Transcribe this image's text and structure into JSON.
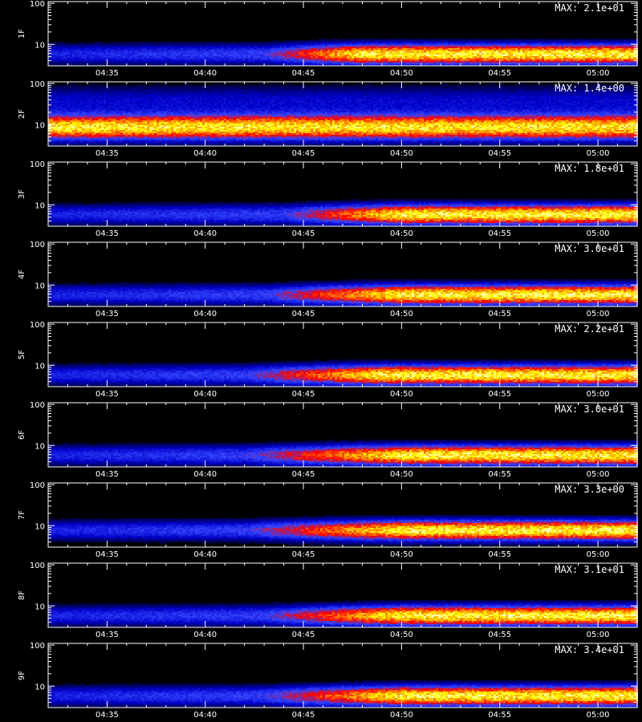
{
  "chart_data": [
    {
      "type": "heatmap",
      "ylabel": "1F",
      "max_label": "MAX: 2.1e+01",
      "max_value": 21,
      "band_center": 6,
      "band_width": 3,
      "onset_time": "04:43",
      "peak_time": "04:48"
    },
    {
      "type": "heatmap",
      "ylabel": "2F",
      "max_label": "MAX: 1.4e+00",
      "max_value": 1.4,
      "band_center": 9,
      "band_width": 6,
      "onset_time": "04:32",
      "peak_time": "04:45",
      "uniform": true
    },
    {
      "type": "heatmap",
      "ylabel": "3F",
      "max_label": "MAX: 1.8e+01",
      "max_value": 18,
      "band_center": 6,
      "band_width": 3,
      "onset_time": "04:44",
      "peak_time": "04:50"
    },
    {
      "type": "heatmap",
      "ylabel": "4F",
      "max_label": "MAX: 3.0e+01",
      "max_value": 30,
      "band_center": 6,
      "band_width": 3,
      "onset_time": "04:43",
      "peak_time": "04:50"
    },
    {
      "type": "heatmap",
      "ylabel": "5F",
      "max_label": "MAX: 2.2e+01",
      "max_value": 22,
      "band_center": 6,
      "band_width": 3,
      "onset_time": "04:42",
      "peak_time": "04:49"
    },
    {
      "type": "heatmap",
      "ylabel": "6F",
      "max_label": "MAX: 3.0e+01",
      "max_value": 30,
      "band_center": 6,
      "band_width": 3,
      "onset_time": "04:42",
      "peak_time": "04:50"
    },
    {
      "type": "heatmap",
      "ylabel": "7F",
      "max_label": "MAX: 3.3e+00",
      "max_value": 3.3,
      "band_center": 8,
      "band_width": 4,
      "onset_time": "04:42",
      "peak_time": "04:50"
    },
    {
      "type": "heatmap",
      "ylabel": "8F",
      "max_label": "MAX: 3.1e+01",
      "max_value": 31,
      "band_center": 6,
      "band_width": 3,
      "onset_time": "04:43",
      "peak_time": "04:50"
    },
    {
      "type": "heatmap",
      "ylabel": "9F",
      "max_label": "MAX: 3.4e+01",
      "max_value": 34,
      "band_center": 6,
      "band_width": 3,
      "onset_time": "04:43",
      "peak_time": "04:50"
    }
  ],
  "shared_axes": {
    "x_range": [
      "04:32",
      "05:02"
    ],
    "x_ticks": [
      "04:35",
      "04:40",
      "04:45",
      "04:50",
      "04:55",
      "05:00"
    ],
    "y_scale": "log",
    "y_range": [
      3,
      110
    ],
    "y_ticks": [
      "10",
      "100"
    ]
  },
  "colors": {
    "background": "#000000",
    "axis": "#ffffff",
    "colormap": [
      "#000000",
      "#0000c8",
      "#3344ff",
      "#ff0000",
      "#ff8800",
      "#ffff00",
      "#ffffff"
    ]
  }
}
